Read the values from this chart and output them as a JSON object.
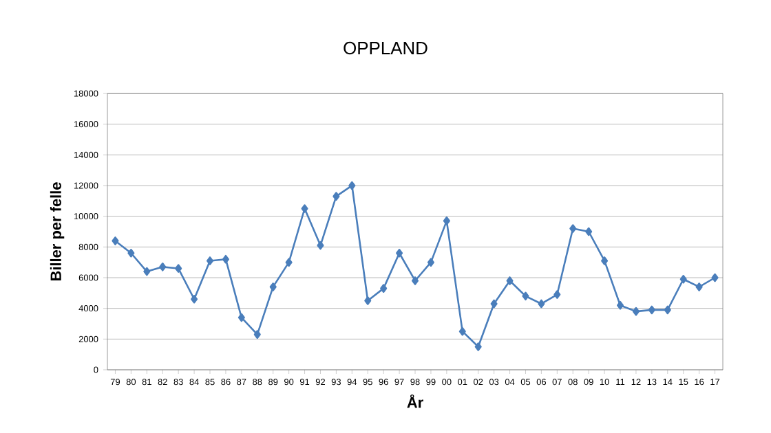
{
  "chart_data": {
    "type": "line",
    "title": "OPPLAND",
    "xlabel": "År",
    "ylabel": "Biller per felle",
    "categories": [
      "79",
      "80",
      "81",
      "82",
      "83",
      "84",
      "85",
      "86",
      "87",
      "88",
      "89",
      "90",
      "91",
      "92",
      "93",
      "94",
      "95",
      "96",
      "97",
      "98",
      "99",
      "00",
      "01",
      "02",
      "03",
      "04",
      "05",
      "06",
      "07",
      "08",
      "09",
      "10",
      "11",
      "12",
      "13",
      "14",
      "15",
      "16",
      "17"
    ],
    "series": [
      {
        "color": "#4a7ebb",
        "values": [
          8400,
          7600,
          6400,
          6700,
          6600,
          4600,
          7100,
          7200,
          3400,
          2300,
          5400,
          7000,
          10500,
          8100,
          11300,
          12000,
          4500,
          5300,
          7600,
          5800,
          7000,
          9700,
          2500,
          1500,
          4300,
          5800,
          4800,
          4300,
          4900,
          9200,
          9000,
          7100,
          4200,
          3800,
          3900,
          3900,
          5900,
          5400,
          6000
        ]
      }
    ],
    "ylim": [
      0,
      18000
    ],
    "yticks": [
      0,
      2000,
      4000,
      6000,
      8000,
      10000,
      12000,
      14000,
      16000,
      18000
    ],
    "grid": "y",
    "marker": "diamond",
    "line_style": "solid"
  }
}
